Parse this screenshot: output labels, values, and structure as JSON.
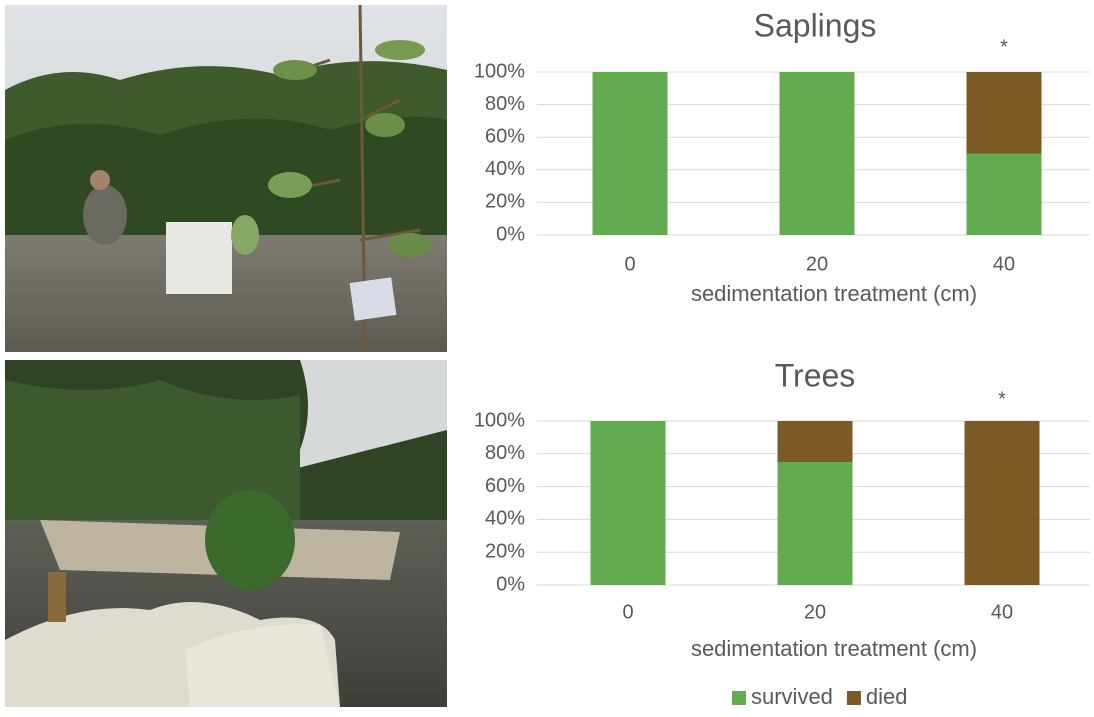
{
  "chart_data": [
    {
      "type": "bar",
      "stacked": true,
      "title": "Saplings",
      "categories": [
        "0",
        "20",
        "40"
      ],
      "xlabel": "sedimentation treatment (cm)",
      "series": [
        {
          "color": "#62ac4f",
          "values": [
            100,
            100,
            50
          ]
        },
        {
          "color": "#7b5a26",
          "values": [
            0,
            0,
            50
          ]
        }
      ],
      "ylim": [
        0,
        100
      ],
      "yticks": [
        {
          "value": 0,
          "label": "0%"
        },
        {
          "value": 20,
          "label": "20%"
        },
        {
          "value": 40,
          "label": "40%"
        },
        {
          "value": 60,
          "label": "60%"
        },
        {
          "value": 80,
          "label": "80%"
        },
        {
          "value": 100,
          "label": "100%"
        }
      ],
      "grid": true,
      "annotations": [
        {
          "text": "*",
          "category": "40"
        }
      ]
    },
    {
      "type": "bar",
      "stacked": true,
      "title": "Trees",
      "categories": [
        "0",
        "20",
        "40"
      ],
      "xlabel": "sedimentation treatment (cm)",
      "series": [
        {
          "name": "survived",
          "color": "#62ac4f",
          "values": [
            100,
            75,
            0
          ]
        },
        {
          "name": "died",
          "color": "#7b5a26",
          "values": [
            0,
            25,
            100
          ]
        }
      ],
      "ylim": [
        0,
        100
      ],
      "yticks": [
        {
          "value": 0,
          "label": "0%"
        },
        {
          "value": 20,
          "label": "20%"
        },
        {
          "value": 40,
          "label": "40%"
        },
        {
          "value": 60,
          "label": "60%"
        },
        {
          "value": 80,
          "label": "80%"
        },
        {
          "value": 100,
          "label": "100%"
        }
      ],
      "grid": true,
      "legend": "bottom",
      "annotations": [
        {
          "text": "*",
          "category": "40"
        }
      ]
    }
  ]
}
